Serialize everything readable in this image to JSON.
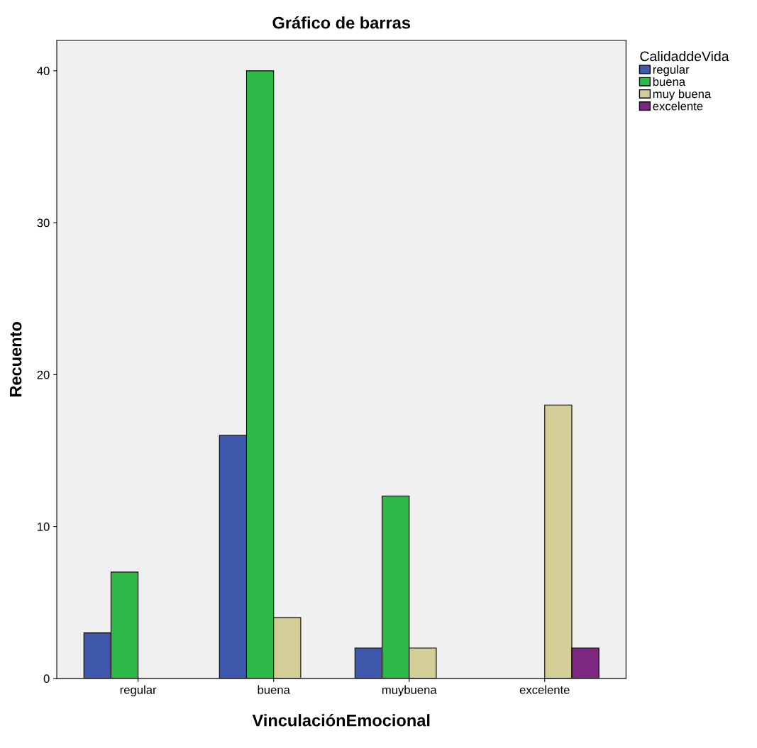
{
  "chart_data": {
    "type": "bar",
    "title": "Gráfico de barras",
    "xlabel": "VinculaciónEmocional",
    "ylabel": "Recuento",
    "legend_title": "CalidaddeVida",
    "categories": [
      "regular",
      "buena",
      "muybuena",
      "excelente"
    ],
    "series": [
      {
        "name": "regular",
        "color": "#3e58ac",
        "values": [
          3,
          16,
          2,
          0
        ]
      },
      {
        "name": "buena",
        "color": "#2eb848",
        "values": [
          7,
          40,
          12,
          0
        ]
      },
      {
        "name": "muy buena",
        "color": "#d3ce97",
        "values": [
          0,
          4,
          2,
          18
        ]
      },
      {
        "name": "excelente",
        "color": "#7c2780",
        "values": [
          0,
          0,
          0,
          2
        ]
      }
    ],
    "ylim": [
      0,
      42
    ],
    "yticks": [
      0,
      10,
      20,
      30,
      40
    ],
    "grid": false,
    "legend": "top right"
  }
}
